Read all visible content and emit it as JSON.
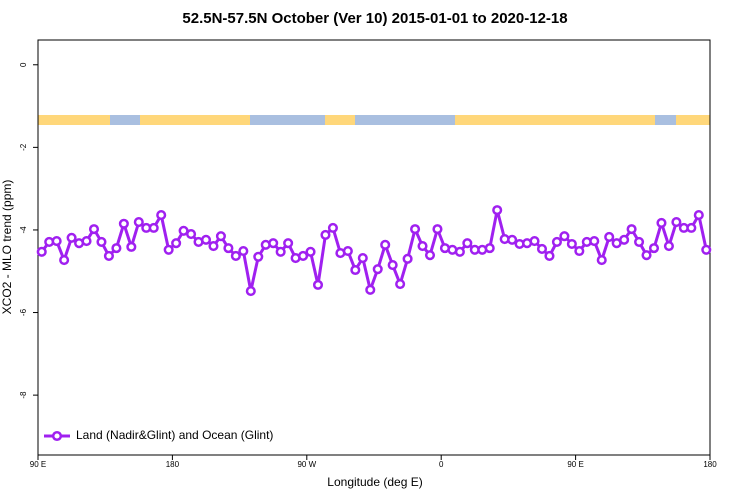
{
  "chart_data": {
    "type": "line",
    "title": "52.5N-57.5N October (Ver 10)   2015-01-01 to 2020-12-18",
    "xlabel": "Longitude (deg E)",
    "ylabel": "XCO2 - MLO trend (ppm)",
    "x": [
      92.5,
      97.5,
      102.5,
      107.5,
      112.5,
      117.5,
      122.5,
      127.5,
      132.5,
      137.5,
      142.5,
      147.5,
      152.5,
      157.5,
      162.5,
      167.5,
      172.5,
      177.5,
      182.5,
      187.5,
      192.5,
      197.5,
      202.5,
      207.5,
      212.5,
      217.5,
      222.5,
      227.5,
      232.5,
      237.5,
      242.5,
      247.5,
      252.5,
      257.5,
      262.5,
      267.5,
      272.5,
      277.5,
      282.5,
      287.5,
      292.5,
      297.5,
      302.5,
      307.5,
      312.5,
      317.5,
      322.5,
      327.5,
      332.5,
      337.5,
      342.5,
      347.5,
      352.5,
      357.5,
      362.5,
      367.5,
      372.5,
      377.5,
      382.5,
      387.5,
      392.5,
      397.5,
      402.5,
      407.5,
      412.5,
      417.5,
      422.5,
      427.5,
      432.5,
      437.5,
      442.5,
      447.5,
      452.5,
      457.5,
      462.5,
      467.5,
      472.5,
      477.5,
      482.5,
      487.5,
      492.5,
      497.5,
      502.5,
      507.5,
      512.5,
      517.5,
      522.5,
      527.5,
      532.5,
      537.5
    ],
    "series": [
      {
        "name": "Land (Nadir&Glint) and Ocean (Glint)",
        "color": "#a020f0",
        "values": [
          -4.53,
          -4.29,
          -4.27,
          -4.73,
          -4.19,
          -4.32,
          -4.27,
          -3.98,
          -4.29,
          -4.63,
          -4.44,
          -3.85,
          -4.41,
          -3.81,
          -3.95,
          -3.95,
          -3.64,
          -4.48,
          -4.32,
          -4.02,
          -4.1,
          -4.29,
          -4.24,
          -4.39,
          -4.15,
          -4.44,
          -4.63,
          -4.51,
          -5.48,
          -4.65,
          -4.36,
          -4.32,
          -4.53,
          -4.32,
          -4.68,
          -4.63,
          -4.53,
          -5.33,
          -4.12,
          -3.95,
          -4.56,
          -4.51,
          -4.97,
          -4.68,
          -5.45,
          -4.95,
          -4.36,
          -4.85,
          -5.31,
          -4.7,
          -3.98,
          -4.39,
          -4.61,
          -3.98,
          -4.44,
          -4.48,
          -4.53,
          -4.32,
          -4.48,
          -4.48,
          -4.44,
          -3.52,
          -4.22,
          -4.24,
          -4.34,
          -4.32,
          -4.27,
          -4.46,
          -4.63,
          -4.29,
          -4.15,
          -4.34,
          -4.51,
          -4.29,
          -4.27,
          -4.73,
          -4.17,
          -4.32,
          -4.24,
          -3.98,
          -4.29,
          -4.61,
          -4.44,
          -3.83,
          -4.39,
          -3.81,
          -3.95,
          -3.95,
          -3.64,
          -4.48
        ]
      }
    ],
    "xlim": [
      90,
      540
    ],
    "xticks": [
      {
        "value": 90,
        "label": "90 E"
      },
      {
        "value": 180,
        "label": "180"
      },
      {
        "value": 270,
        "label": "90 W"
      },
      {
        "value": 360,
        "label": "0"
      },
      {
        "value": 450,
        "label": "90 E"
      },
      {
        "value": 540,
        "label": "180"
      }
    ],
    "ylim": [
      -9.45,
      0.6
    ],
    "yticks": [
      0,
      -2,
      -4,
      -6,
      -8
    ],
    "legend": "lower left"
  }
}
